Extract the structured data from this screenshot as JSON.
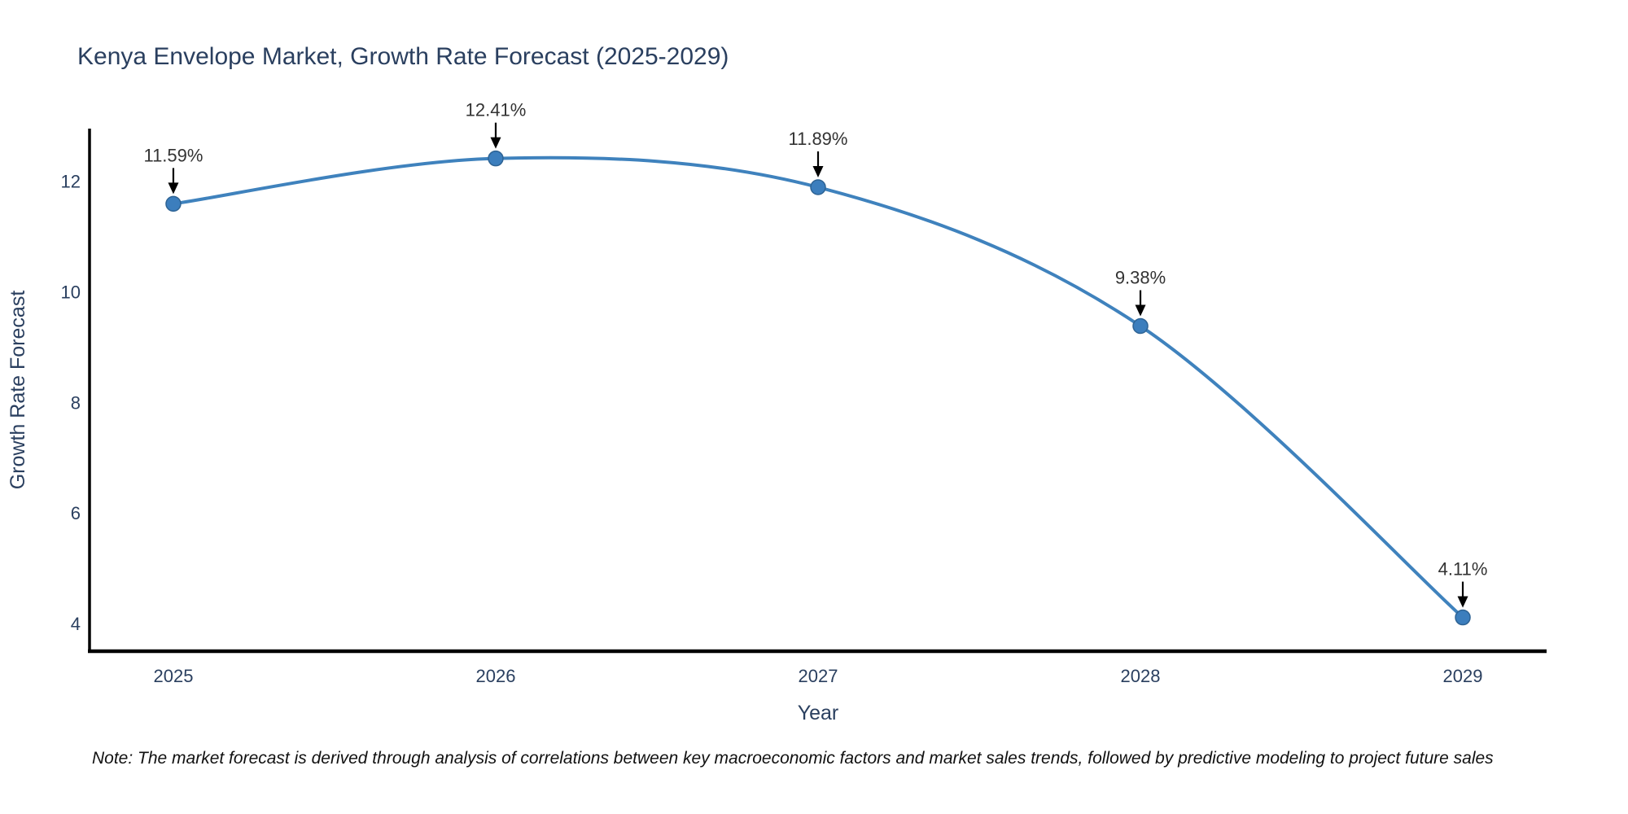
{
  "title": "Kenya Envelope Market, Growth Rate Forecast (2025-2029)",
  "note": "Note: The market forecast is derived through analysis of correlations between key macroeconomic factors and market sales trends, followed by predictive modeling to project future sales",
  "chart_data": {
    "type": "line",
    "x": [
      2025,
      2026,
      2027,
      2028,
      2029
    ],
    "values": [
      11.59,
      12.41,
      11.89,
      9.38,
      4.11
    ],
    "point_labels": [
      "11.59%",
      "12.41%",
      "11.89%",
      "9.38%",
      "4.11%"
    ],
    "title": "Kenya Envelope Market, Growth Rate Forecast (2025-2029)",
    "xlabel": "Year",
    "ylabel": "Growth Rate Forecast",
    "x_tick_labels": [
      "2025",
      "2026",
      "2027",
      "2028",
      "2029"
    ],
    "y_tick_values": [
      4,
      6,
      8,
      10,
      12
    ],
    "y_tick_labels": [
      "4",
      "6",
      "8",
      "10",
      "12"
    ],
    "x_range": [
      2024.74,
      2029.26
    ],
    "y_range": [
      3.5,
      12.95
    ],
    "grid": false,
    "legend": "none",
    "line_shape": "spline",
    "colors": {
      "line": "#3f82bd",
      "marker_fill": "#3c7ebd",
      "marker_edge": "#2e6394",
      "axis_line": "#000000",
      "tick_label": "#2a3f5f",
      "title_text": "#2a3f5f",
      "annotation_text": "#333333",
      "annotation_arrow": "#000000"
    }
  }
}
